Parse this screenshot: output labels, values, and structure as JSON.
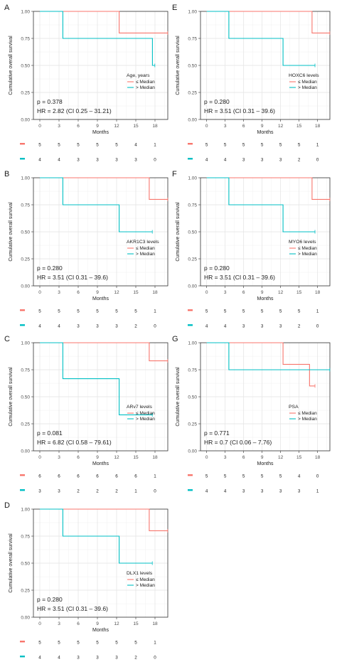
{
  "chart_data": [
    {
      "panel_label": "A",
      "type": "line",
      "ylabel": "Cumulative overall survival",
      "xlabel": "Months",
      "xticks": [
        0,
        3,
        6,
        9,
        12,
        15,
        18
      ],
      "yticks": [
        "0.00",
        "0.25",
        "0.50",
        "0.75",
        "1.00"
      ],
      "xlim": [
        -1,
        20
      ],
      "ylim": [
        0,
        1
      ],
      "legend_title": "Age, years",
      "legend_position": "right-middle",
      "series": [
        {
          "name": "≤ Median",
          "color": "#f8766d",
          "steps": [
            [
              0,
              1.0
            ],
            [
              12.4,
              1.0
            ],
            [
              12.4,
              0.8
            ],
            [
              20,
              0.8
            ]
          ]
        },
        {
          "name": "> Median",
          "color": "#00bfc4",
          "steps": [
            [
              0,
              1.0
            ],
            [
              3.6,
              1.0
            ],
            [
              3.6,
              0.75
            ],
            [
              17.6,
              0.75
            ],
            [
              17.6,
              0.5
            ],
            [
              18.0,
              0.5
            ]
          ]
        }
      ],
      "stats": [
        "p = 0.378",
        "HR = 2.82 (CI 0.25 – 31.21)"
      ],
      "risk_table": [
        [
          "5",
          "5",
          "5",
          "5",
          "5",
          "4",
          "1"
        ],
        [
          "4",
          "4",
          "3",
          "3",
          "3",
          "3",
          "0"
        ]
      ]
    },
    {
      "panel_label": "E",
      "type": "line",
      "ylabel": "Cumulative overall survival",
      "xlabel": "Months",
      "xticks": [
        0,
        3,
        6,
        9,
        12,
        15,
        18
      ],
      "yticks": [
        "0.00",
        "0.25",
        "0.50",
        "0.75",
        "1.00"
      ],
      "xlim": [
        -1,
        20
      ],
      "ylim": [
        0,
        1
      ],
      "legend_title": "HOXC6 levels",
      "legend_position": "right-middle",
      "series": [
        {
          "name": "≤ Median",
          "color": "#f8766d",
          "steps": [
            [
              0,
              1.0
            ],
            [
              17.1,
              1.0
            ],
            [
              17.1,
              0.8
            ],
            [
              20,
              0.8
            ]
          ]
        },
        {
          "name": "> Median",
          "color": "#00bfc4",
          "steps": [
            [
              0,
              1.0
            ],
            [
              3.6,
              1.0
            ],
            [
              3.6,
              0.75
            ],
            [
              12.4,
              0.75
            ],
            [
              12.4,
              0.5
            ],
            [
              17.6,
              0.5
            ]
          ]
        }
      ],
      "stats": [
        "p = 0.280",
        "HR = 3.51 (CI 0.31 – 39.6)"
      ],
      "risk_table": [
        [
          "5",
          "5",
          "5",
          "5",
          "5",
          "5",
          "1"
        ],
        [
          "4",
          "4",
          "3",
          "3",
          "3",
          "2",
          "0"
        ]
      ]
    },
    {
      "panel_label": "B",
      "type": "line",
      "ylabel": "Cumulative overall survival",
      "xlabel": "Months",
      "xticks": [
        0,
        3,
        6,
        9,
        12,
        15,
        18
      ],
      "yticks": [
        "0.00",
        "0.25",
        "0.50",
        "0.75",
        "1.00"
      ],
      "xlim": [
        -1,
        20
      ],
      "ylim": [
        0,
        1
      ],
      "legend_title": "AKR1C3 levels",
      "legend_position": "right-middle",
      "series": [
        {
          "name": "≤ Median",
          "color": "#f8766d",
          "steps": [
            [
              0,
              1.0
            ],
            [
              17.1,
              1.0
            ],
            [
              17.1,
              0.8
            ],
            [
              20,
              0.8
            ]
          ]
        },
        {
          "name": "> Median",
          "color": "#00bfc4",
          "steps": [
            [
              0,
              1.0
            ],
            [
              3.6,
              1.0
            ],
            [
              3.6,
              0.75
            ],
            [
              12.4,
              0.75
            ],
            [
              12.4,
              0.5
            ],
            [
              17.6,
              0.5
            ]
          ]
        }
      ],
      "stats": [
        "p = 0.280",
        "HR = 3.51 (CI 0.31 – 39.6)"
      ],
      "risk_table": [
        [
          "5",
          "5",
          "5",
          "5",
          "5",
          "5",
          "1"
        ],
        [
          "4",
          "4",
          "3",
          "3",
          "3",
          "2",
          "0"
        ]
      ]
    },
    {
      "panel_label": "F",
      "type": "line",
      "ylabel": "Cumulative overall survival",
      "xlabel": "Months",
      "xticks": [
        0,
        3,
        6,
        9,
        12,
        15,
        18
      ],
      "yticks": [
        "0.00",
        "0.25",
        "0.50",
        "0.75",
        "1.00"
      ],
      "xlim": [
        -1,
        20
      ],
      "ylim": [
        0,
        1
      ],
      "legend_title": "MYO6 levels",
      "legend_position": "right-middle",
      "series": [
        {
          "name": "≤ Median",
          "color": "#f8766d",
          "steps": [
            [
              0,
              1.0
            ],
            [
              17.1,
              1.0
            ],
            [
              17.1,
              0.8
            ],
            [
              20,
              0.8
            ]
          ]
        },
        {
          "name": "> Median",
          "color": "#00bfc4",
          "steps": [
            [
              0,
              1.0
            ],
            [
              3.6,
              1.0
            ],
            [
              3.6,
              0.75
            ],
            [
              12.4,
              0.75
            ],
            [
              12.4,
              0.5
            ],
            [
              17.6,
              0.5
            ]
          ]
        }
      ],
      "stats": [
        "p = 0.280",
        "HR = 3.51 (CI 0.31 – 39.6)"
      ],
      "risk_table": [
        [
          "5",
          "5",
          "5",
          "5",
          "5",
          "5",
          "1"
        ],
        [
          "4",
          "4",
          "3",
          "3",
          "3",
          "2",
          "0"
        ]
      ]
    },
    {
      "panel_label": "C",
      "type": "line",
      "ylabel": "Cumulative overall survival",
      "xlabel": "Months",
      "xticks": [
        0,
        3,
        6,
        9,
        12,
        15,
        18
      ],
      "yticks": [
        "0.00",
        "0.25",
        "0.50",
        "0.75",
        "1.00"
      ],
      "xlim": [
        -1,
        20
      ],
      "ylim": [
        0,
        1
      ],
      "legend_title": "ARv7 levels",
      "legend_position": "right-middle",
      "series": [
        {
          "name": "≤ Median",
          "color": "#f8766d",
          "steps": [
            [
              0,
              1.0
            ],
            [
              17.1,
              1.0
            ],
            [
              17.1,
              0.833
            ],
            [
              20,
              0.833
            ]
          ]
        },
        {
          "name": "> Median",
          "color": "#00bfc4",
          "steps": [
            [
              0,
              1.0
            ],
            [
              3.6,
              1.0
            ],
            [
              3.6,
              0.667
            ],
            [
              12.4,
              0.667
            ],
            [
              12.4,
              0.333
            ],
            [
              17.6,
              0.333
            ]
          ]
        }
      ],
      "stats": [
        "p = 0.081",
        "HR = 6.82 (CI 0.58 – 79.61)"
      ],
      "risk_table": [
        [
          "6",
          "6",
          "6",
          "6",
          "6",
          "6",
          "1"
        ],
        [
          "3",
          "3",
          "2",
          "2",
          "2",
          "1",
          "0"
        ]
      ]
    },
    {
      "panel_label": "G",
      "type": "line",
      "ylabel": "Cumulative overall survival",
      "xlabel": "Months",
      "xticks": [
        0,
        3,
        6,
        9,
        12,
        15,
        18
      ],
      "yticks": [
        "0.00",
        "0.25",
        "0.50",
        "0.75",
        "1.00"
      ],
      "xlim": [
        -1,
        20
      ],
      "ylim": [
        0,
        1
      ],
      "legend_title": "PSA",
      "legend_position": "right-middle",
      "series": [
        {
          "name": "≤ Median",
          "color": "#f8766d",
          "steps": [
            [
              0,
              1.0
            ],
            [
              12.4,
              1.0
            ],
            [
              12.4,
              0.8
            ],
            [
              16.7,
              0.8
            ],
            [
              16.7,
              0.6
            ],
            [
              17.6,
              0.6
            ]
          ]
        },
        {
          "name": "> Median",
          "color": "#00bfc4",
          "steps": [
            [
              0,
              1.0
            ],
            [
              3.6,
              1.0
            ],
            [
              3.6,
              0.75
            ],
            [
              20,
              0.75
            ]
          ]
        }
      ],
      "stats": [
        "p = 0.771",
        "HR = 0.7 (CI 0.06 – 7.76)"
      ],
      "risk_table": [
        [
          "5",
          "5",
          "5",
          "5",
          "5",
          "4",
          "0"
        ],
        [
          "4",
          "4",
          "3",
          "3",
          "3",
          "3",
          "1"
        ]
      ]
    },
    {
      "panel_label": "D",
      "type": "line",
      "ylabel": "Cumulative overall survival",
      "xlabel": "Months",
      "xticks": [
        0,
        3,
        6,
        9,
        12,
        15,
        18
      ],
      "yticks": [
        "0.00",
        "0.25",
        "0.50",
        "0.75",
        "1.00"
      ],
      "xlim": [
        -1,
        20
      ],
      "ylim": [
        0,
        1
      ],
      "legend_title": "DLX1 levels",
      "legend_position": "right-middle",
      "series": [
        {
          "name": "≤ Median",
          "color": "#f8766d",
          "steps": [
            [
              0,
              1.0
            ],
            [
              17.1,
              1.0
            ],
            [
              17.1,
              0.8
            ],
            [
              20,
              0.8
            ]
          ]
        },
        {
          "name": "> Median",
          "color": "#00bfc4",
          "steps": [
            [
              0,
              1.0
            ],
            [
              3.6,
              1.0
            ],
            [
              3.6,
              0.75
            ],
            [
              12.4,
              0.75
            ],
            [
              12.4,
              0.5
            ],
            [
              17.6,
              0.5
            ]
          ]
        }
      ],
      "stats": [
        "p = 0.280",
        "HR = 3.51 (CI 0.31 – 39.6)"
      ],
      "risk_table": [
        [
          "5",
          "5",
          "5",
          "5",
          "5",
          "5",
          "1"
        ],
        [
          "4",
          "4",
          "3",
          "3",
          "3",
          "2",
          "0"
        ]
      ]
    }
  ]
}
